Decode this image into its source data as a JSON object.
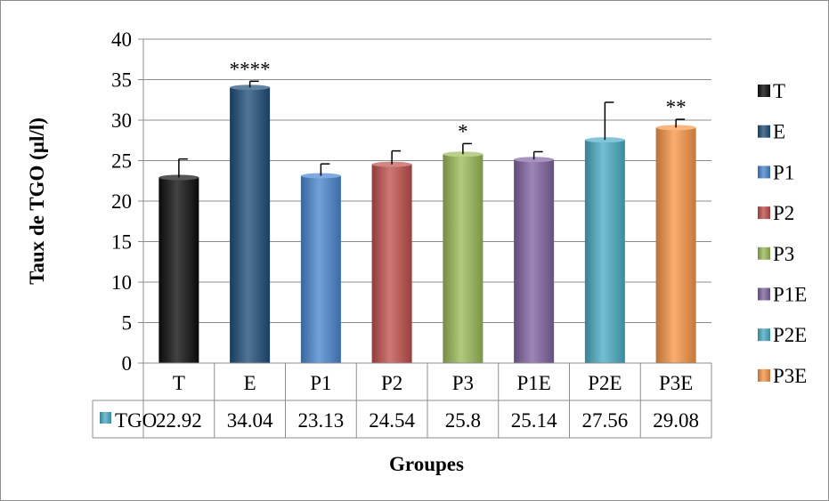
{
  "chart_data": {
    "type": "bar",
    "title": "",
    "xlabel": "Groupes",
    "ylabel": "Taux de TGO (µl/l)",
    "ylim": [
      0,
      40
    ],
    "yticks": [
      "0",
      "5",
      "10",
      "15",
      "20",
      "25",
      "30",
      "35",
      "40"
    ],
    "grid": true,
    "legend_position": "right",
    "categories": [
      "T",
      "E",
      "P1",
      "P2",
      "P3",
      "P1E",
      "P2E",
      "P3E"
    ],
    "series": [
      {
        "name": "TGO",
        "values": [
          22.92,
          34.04,
          23.13,
          24.54,
          25.8,
          25.14,
          27.56,
          29.08
        ],
        "value_labels": [
          "22.92",
          "34.04",
          "23.13",
          "24.54",
          "25.8",
          "25.14",
          "27.56",
          "29.08"
        ],
        "error_tops": [
          25.2,
          34.8,
          24.6,
          26.2,
          27.1,
          26.1,
          32.2,
          30.1
        ],
        "annotations": [
          "",
          "****",
          "",
          "",
          "*",
          "",
          "",
          "**"
        ]
      }
    ],
    "data_table": {
      "row_label": "TGO"
    },
    "colors": [
      "#0d0d0d",
      "#1f4e79",
      "#4a86cf",
      "#c0504d",
      "#9bbb59",
      "#8064a2",
      "#4bacc6",
      "#f79646"
    ],
    "legend": [
      "T",
      "E",
      "P1",
      "P2",
      "P3",
      "P1E",
      "P2E",
      "P3E"
    ]
  }
}
